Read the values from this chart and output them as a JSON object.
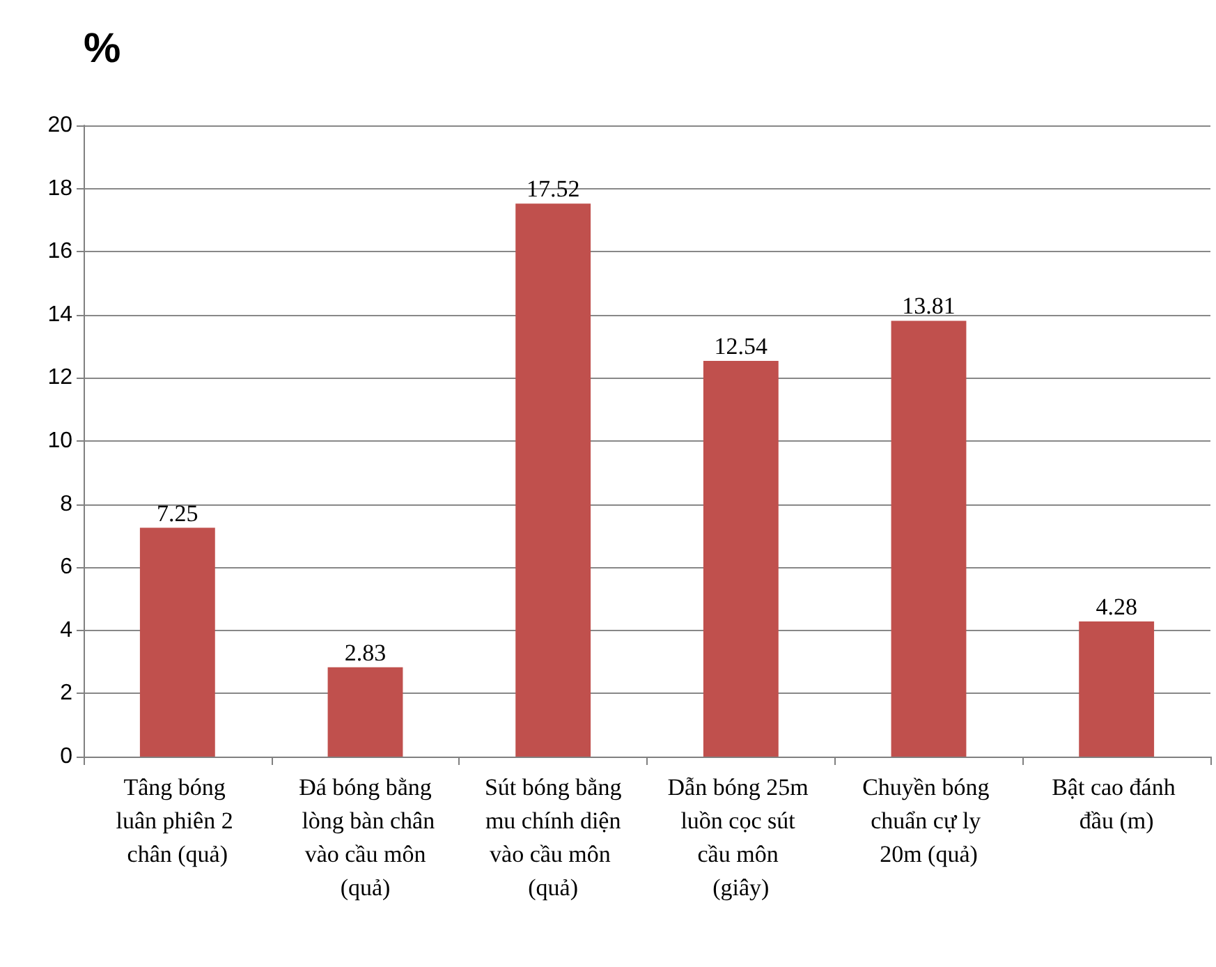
{
  "chart_data": {
    "type": "bar",
    "ylabel": "%",
    "categories": [
      "Tâng bóng luân phiên 2 chân (quả)",
      "Đá bóng bằng lòng bàn chân vào cầu môn (quả)",
      "Sút bóng bằng mu chính diện vào cầu môn (quả)",
      "Dẫn bóng 25m luồn cọc sút cầu môn (giây)",
      "Chuyền bóng chuẩn cự ly 20m (quả)",
      "Bật cao đánh đầu (m)"
    ],
    "values": [
      7.25,
      2.83,
      17.52,
      12.54,
      13.81,
      4.28
    ],
    "color": "#c0504d",
    "ylim": [
      0,
      20
    ],
    "yticks": [
      0,
      2,
      4,
      6,
      8,
      10,
      12,
      14,
      16,
      18,
      20
    ],
    "grid": "y",
    "data_labels": true
  }
}
